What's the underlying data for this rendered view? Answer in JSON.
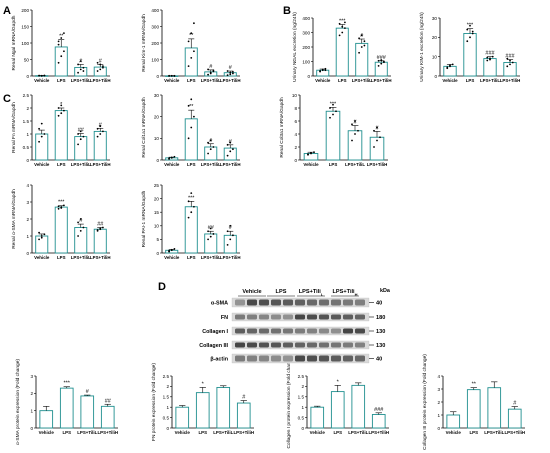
{
  "panel_letters": [
    "A",
    "B",
    "C",
    "D"
  ],
  "colors": {
    "teal": "#1f8f8f",
    "text": "#000000"
  },
  "blot": {
    "kda_label": "kDa",
    "groups": [
      "Vehicle",
      "LPS",
      "LPS+Tili",
      "LPS+Tili"
    ],
    "group_subscripts": [
      "",
      "",
      "L",
      "H"
    ],
    "rows": [
      {
        "label": "α-SMA",
        "kda": "40"
      },
      {
        "label": "FN",
        "kda": "180"
      },
      {
        "label": "Collagen I",
        "kda": "130"
      },
      {
        "label": "Collagen III",
        "kda": "130"
      },
      {
        "label": "β-actin",
        "kda": "40"
      }
    ]
  },
  "chart_data": [
    {
      "panel": "A",
      "type": "bar",
      "ylabel": "Renal Ngal mRNA/Gapdh",
      "categories": [
        "Vehicle",
        "LPS",
        "LPS+TiliL",
        "LPS+TiliH"
      ],
      "values": [
        1,
        88,
        26,
        27
      ],
      "errors": [
        0.5,
        22,
        9,
        8
      ],
      "yticks": [
        0,
        50,
        100,
        150,
        200
      ],
      "ylim": [
        0,
        200
      ],
      "sig": [
        "",
        "**",
        "#",
        "#"
      ],
      "points": [
        [
          1,
          0.5,
          1.5,
          1.2,
          0.6,
          1.1
        ],
        [
          40,
          60,
          75,
          95,
          115,
          130,
          105
        ],
        [
          10,
          20,
          25,
          35,
          45,
          15
        ],
        [
          15,
          20,
          30,
          40,
          35,
          25
        ]
      ]
    },
    {
      "panel": "A",
      "type": "bar",
      "ylabel": "Renal Kim-1 mRNA/Gapdh",
      "categories": [
        "Vehicle",
        "LPS",
        "LPS+TiliL",
        "LPS+TiliH"
      ],
      "values": [
        1,
        170,
        25,
        20
      ],
      "errors": [
        0.5,
        55,
        12,
        10
      ],
      "yticks": [
        0,
        100,
        200,
        300,
        400
      ],
      "ylim": [
        0,
        400
      ],
      "sig": [
        "",
        "**",
        "#",
        "#"
      ],
      "points": [
        [
          1,
          1.5,
          0.5,
          1,
          0.8,
          1.2
        ],
        [
          60,
          110,
          150,
          210,
          260,
          320
        ],
        [
          8,
          15,
          28,
          40,
          20,
          35
        ],
        [
          5,
          10,
          25,
          30,
          20,
          15
        ]
      ]
    },
    {
      "panel": "B",
      "type": "bar",
      "ylabel": "Urinary NGAL excretion (ng/24h)",
      "categories": [
        "Vehicle",
        "LPS",
        "LPS+TiliL",
        "LPS+TiliH"
      ],
      "values": [
        40,
        330,
        225,
        95
      ],
      "errors": [
        8,
        25,
        30,
        10
      ],
      "yticks": [
        0,
        100,
        200,
        300,
        400
      ],
      "ylim": [
        0,
        400
      ],
      "sig": [
        "",
        "***",
        "#",
        "###"
      ],
      "points": [
        [
          30,
          40,
          50,
          35,
          45,
          40
        ],
        [
          280,
          300,
          330,
          360,
          340,
          370
        ],
        [
          160,
          200,
          240,
          260,
          280,
          210
        ],
        [
          70,
          85,
          95,
          105,
          110,
          100
        ]
      ]
    },
    {
      "panel": "B",
      "type": "bar",
      "ylabel": "Urinary KIM-1 excretion (ng/24h)",
      "categories": [
        "Vehicle",
        "LPS",
        "LPS+TiliL",
        "LPS+TiliH"
      ],
      "values": [
        5,
        22,
        9,
        7
      ],
      "errors": [
        1,
        2.5,
        1,
        1.5
      ],
      "yticks": [
        0,
        10,
        20,
        30
      ],
      "ylim": [
        0,
        30
      ],
      "sig": [
        "",
        "***",
        "###",
        "###"
      ],
      "points": [
        [
          4,
          5,
          6,
          4.5,
          5.5
        ],
        [
          18,
          20,
          22,
          24,
          26,
          23
        ],
        [
          8,
          9,
          10,
          9.5,
          8.5
        ],
        [
          5,
          6,
          7,
          9,
          8
        ]
      ]
    },
    {
      "panel": "C",
      "type": "bar",
      "ylabel": "Renal Fn mRNA/Gapdh",
      "categories": [
        "Vehicle",
        "LPS",
        "LPS+TiliL",
        "LPS+TiliH"
      ],
      "values": [
        1,
        1.9,
        0.9,
        1.1
      ],
      "errors": [
        0.15,
        0.1,
        0.12,
        0.12
      ],
      "yticks": [
        0.0,
        0.5,
        1.0,
        1.5,
        2.0,
        2.5
      ],
      "ylim": [
        0,
        2.5
      ],
      "sig": [
        "",
        "*",
        "##",
        "#"
      ],
      "points": [
        [
          0.7,
          0.9,
          1.0,
          1.2,
          1.4
        ],
        [
          1.7,
          1.8,
          1.9,
          2.0,
          2.1
        ],
        [
          0.6,
          0.8,
          0.9,
          1.0,
          1.1
        ],
        [
          0.9,
          1.0,
          1.1,
          1.2,
          1.3
        ]
      ]
    },
    {
      "panel": "C",
      "type": "bar",
      "ylabel": "Renal Col1a1 mRNA/Gapdh",
      "categories": [
        "Vehicle",
        "LPS",
        "LPS+TiliL",
        "LPS+TiliH"
      ],
      "values": [
        1,
        19,
        6,
        5.5
      ],
      "errors": [
        0.3,
        4,
        1.5,
        1.5
      ],
      "yticks": [
        0,
        10,
        20,
        30
      ],
      "ylim": [
        0,
        30
      ],
      "sig": [
        "",
        "**",
        "#",
        "#"
      ],
      "points": [
        [
          0.5,
          1,
          1.5,
          0.8,
          1.2
        ],
        [
          10,
          15,
          20,
          25,
          28
        ],
        [
          3,
          5,
          6,
          8,
          9
        ],
        [
          2,
          4,
          5,
          7,
          8
        ]
      ]
    },
    {
      "panel": "C",
      "type": "bar",
      "ylabel": "Renal Col3a1 mRNA/Gapdh",
      "categories": [
        "Vehicle",
        "LPS",
        "LPS+TiliL",
        "LPS+TiliH"
      ],
      "values": [
        1,
        7.5,
        4.5,
        3.5
      ],
      "errors": [
        0.2,
        0.6,
        0.8,
        0.9
      ],
      "yticks": [
        0,
        2,
        4,
        6,
        8,
        10
      ],
      "ylim": [
        0,
        10
      ],
      "sig": [
        "",
        "***",
        "#",
        "#"
      ],
      "points": [
        [
          0.8,
          1,
          1.2,
          0.9,
          1.1
        ],
        [
          6.5,
          7,
          7.5,
          8,
          8.5
        ],
        [
          3,
          4,
          4.5,
          5.5,
          6
        ],
        [
          2,
          3,
          3.5,
          4.5,
          5
        ]
      ]
    },
    {
      "panel": "C",
      "type": "bar",
      "ylabel": "Renal α-SMA mRNA/Gapdh",
      "categories": [
        "Vehicle",
        "LPS",
        "LPS+TiliL",
        "LPS+TiliH"
      ],
      "values": [
        1,
        2.7,
        1.5,
        1.4
      ],
      "errors": [
        0.12,
        0.08,
        0.2,
        0.1
      ],
      "yticks": [
        0,
        1,
        2,
        3,
        4
      ],
      "ylim": [
        0,
        4
      ],
      "sig": [
        "",
        "***",
        "#",
        "##"
      ],
      "points": [
        [
          0.8,
          1.0,
          1.1,
          1.2,
          0.9
        ],
        [
          2.6,
          2.7,
          2.8,
          2.75,
          2.65
        ],
        [
          1.0,
          1.3,
          1.5,
          1.8,
          2.0
        ],
        [
          1.3,
          1.4,
          1.5,
          1.35,
          1.45
        ]
      ]
    },
    {
      "panel": "C",
      "type": "bar",
      "ylabel": "Renal PAI-1 mRNA/Gapdh",
      "categories": [
        "Vehicle",
        "LPS",
        "LPS+TiliL",
        "LPS+TiliH"
      ],
      "values": [
        1,
        17,
        7,
        6.5
      ],
      "errors": [
        0.3,
        2,
        1,
        1.5
      ],
      "yticks": [
        0,
        5,
        10,
        15,
        20,
        25
      ],
      "ylim": [
        0,
        25
      ],
      "sig": [
        "",
        "***",
        "##",
        "#"
      ],
      "points": [
        [
          0.5,
          1,
          1.5,
          0.8,
          1.2
        ],
        [
          13,
          15,
          17,
          19,
          22
        ],
        [
          5,
          6,
          7,
          8,
          9
        ],
        [
          3,
          5,
          6.5,
          8,
          10
        ]
      ]
    },
    {
      "panel": "D",
      "type": "bar",
      "ylabel": "α-SMA protein expression (Fold change)",
      "categories": [
        "Vehicle",
        "LPS",
        "LPS+TiliL",
        "LPS+TiliH"
      ],
      "values": [
        1,
        2.3,
        1.85,
        1.25
      ],
      "errors": [
        0.25,
        0.08,
        0.05,
        0.12
      ],
      "yticks": [
        0,
        1,
        2,
        3
      ],
      "ylim": [
        0,
        3
      ],
      "sig": [
        "",
        "***",
        "#",
        "##"
      ],
      "points": []
    },
    {
      "panel": "D",
      "type": "bar",
      "ylabel": "FN protein expression (Fold change)",
      "categories": [
        "Vehicle",
        "LPS",
        "LPS+TiliL",
        "LPS+TiliH"
      ],
      "values": [
        1,
        1.7,
        1.95,
        1.2
      ],
      "errors": [
        0.08,
        0.25,
        0.08,
        0.12
      ],
      "yticks": [
        0.0,
        0.5,
        1.0,
        1.5,
        2.0,
        2.5
      ],
      "ylim": [
        0,
        2.5
      ],
      "sig": [
        "",
        "*",
        "",
        "#"
      ],
      "points": []
    },
    {
      "panel": "D",
      "type": "bar",
      "ylabel": "Collagen I protein expression (Fold change)",
      "categories": [
        "Vehicle",
        "LPS",
        "LPS+TiliL",
        "LPS+TiliH"
      ],
      "values": [
        1,
        1.75,
        2.05,
        0.65
      ],
      "errors": [
        0.05,
        0.3,
        0.12,
        0.08
      ],
      "yticks": [
        0.0,
        0.5,
        1.0,
        1.5,
        2.0,
        2.5
      ],
      "ylim": [
        0,
        2.5
      ],
      "sig": [
        "",
        "*",
        "",
        "###"
      ],
      "points": []
    },
    {
      "panel": "D",
      "type": "bar",
      "ylabel": "Collagen III protein expression (Fold change)",
      "categories": [
        "Vehicle",
        "LPS",
        "LPS+TiliL",
        "LPS+TiliH"
      ],
      "values": [
        1,
        2.95,
        3.1,
        1.45
      ],
      "errors": [
        0.25,
        0.15,
        0.45,
        0.2
      ],
      "yticks": [
        0,
        1,
        2,
        3,
        4
      ],
      "ylim": [
        0,
        4
      ],
      "sig": [
        "",
        "**",
        "",
        "#"
      ],
      "points": []
    }
  ]
}
